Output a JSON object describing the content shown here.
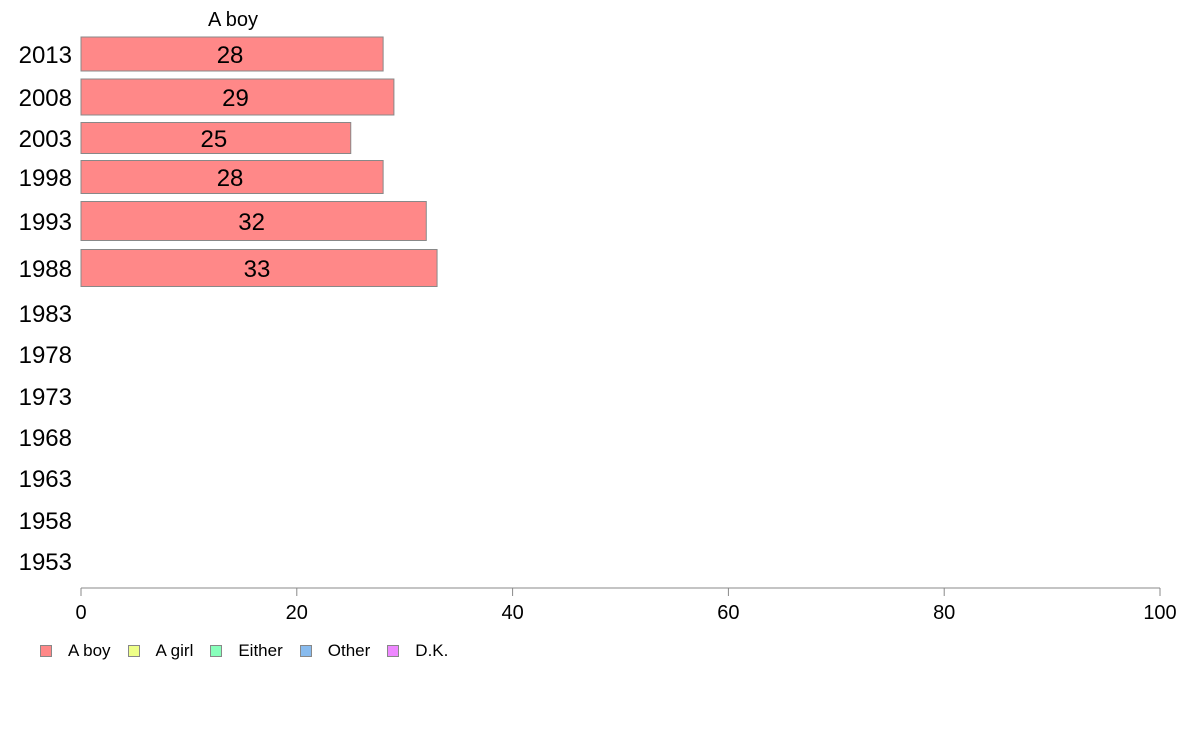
{
  "chart_data": {
    "type": "bar",
    "orientation": "horizontal",
    "title": "A boy",
    "categories": [
      "2013",
      "2008",
      "2003",
      "1998",
      "1993",
      "1988",
      "1983",
      "1978",
      "1973",
      "1968",
      "1963",
      "1958",
      "1953"
    ],
    "series": [
      {
        "name": "A boy",
        "color": "#ff8888",
        "values": [
          28,
          29,
          25,
          28,
          32,
          33,
          null,
          null,
          null,
          null,
          null,
          null,
          null
        ]
      }
    ],
    "x_ticks": [
      "0",
      "20",
      "40",
      "60",
      "80",
      "100"
    ],
    "xlim": [
      0,
      100
    ],
    "grid": false,
    "legend": {
      "placement": "bottom-left",
      "items": [
        {
          "label": "A boy",
          "color": "#ff8888"
        },
        {
          "label": "A girl",
          "color": "#eeff88"
        },
        {
          "label": "Either",
          "color": "#88ffbb"
        },
        {
          "label": "Other",
          "color": "#88bbee"
        },
        {
          "label": "D.K.",
          "color": "#ee88ff"
        }
      ]
    }
  }
}
